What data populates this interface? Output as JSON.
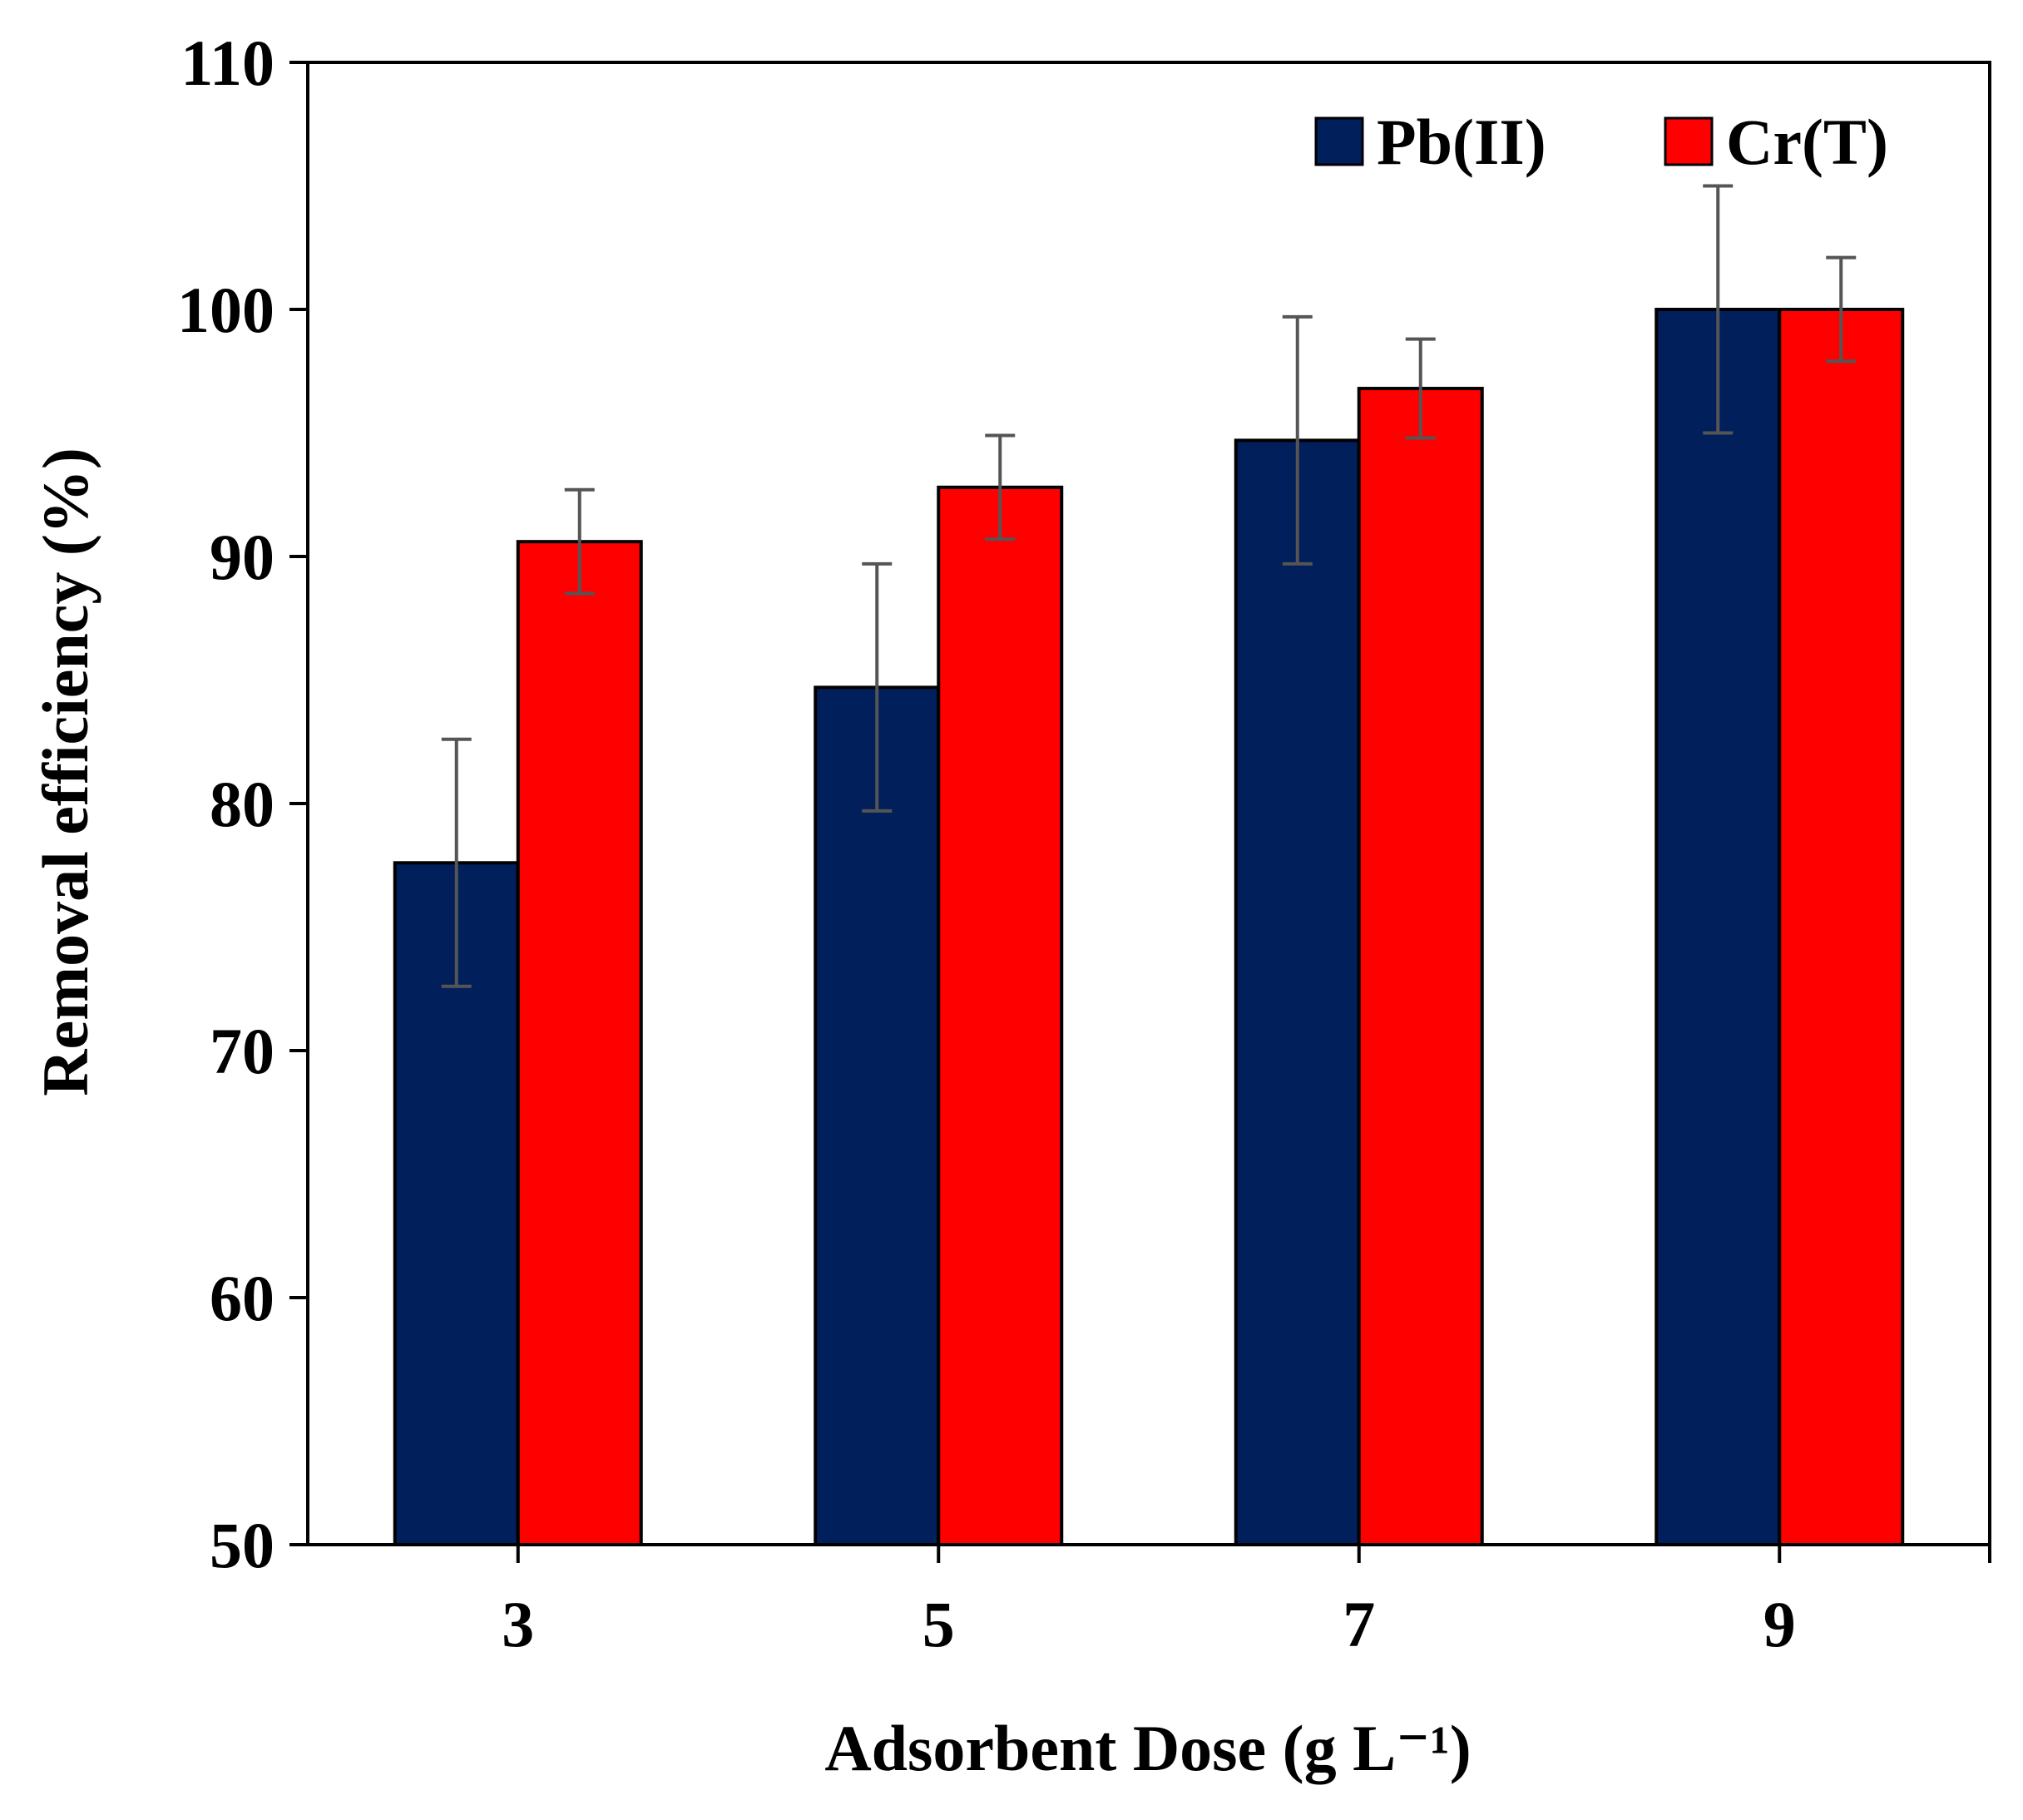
{
  "chart_data": {
    "type": "bar",
    "xlabel": "Adsorbent Dose (g L⁻¹)",
    "ylabel": "Removal efficiency (%)",
    "ylim": [
      50,
      110
    ],
    "yticks": [
      50,
      60,
      70,
      80,
      90,
      100,
      110
    ],
    "categories": [
      "3",
      "5",
      "7",
      "9"
    ],
    "grid": false,
    "legend": {
      "position": "top-right"
    },
    "series": [
      {
        "name": "Pb(II)",
        "color": "#001F5B",
        "values": [
          77.6,
          84.7,
          94.7,
          100.0
        ],
        "errors": [
          5.0,
          5.0,
          5.0,
          5.0
        ]
      },
      {
        "name": "Cr(T)",
        "color": "#FF0000",
        "values": [
          90.6,
          92.8,
          96.8,
          100.0
        ],
        "errors": [
          2.1,
          2.1,
          2.0,
          2.1
        ]
      }
    ]
  }
}
